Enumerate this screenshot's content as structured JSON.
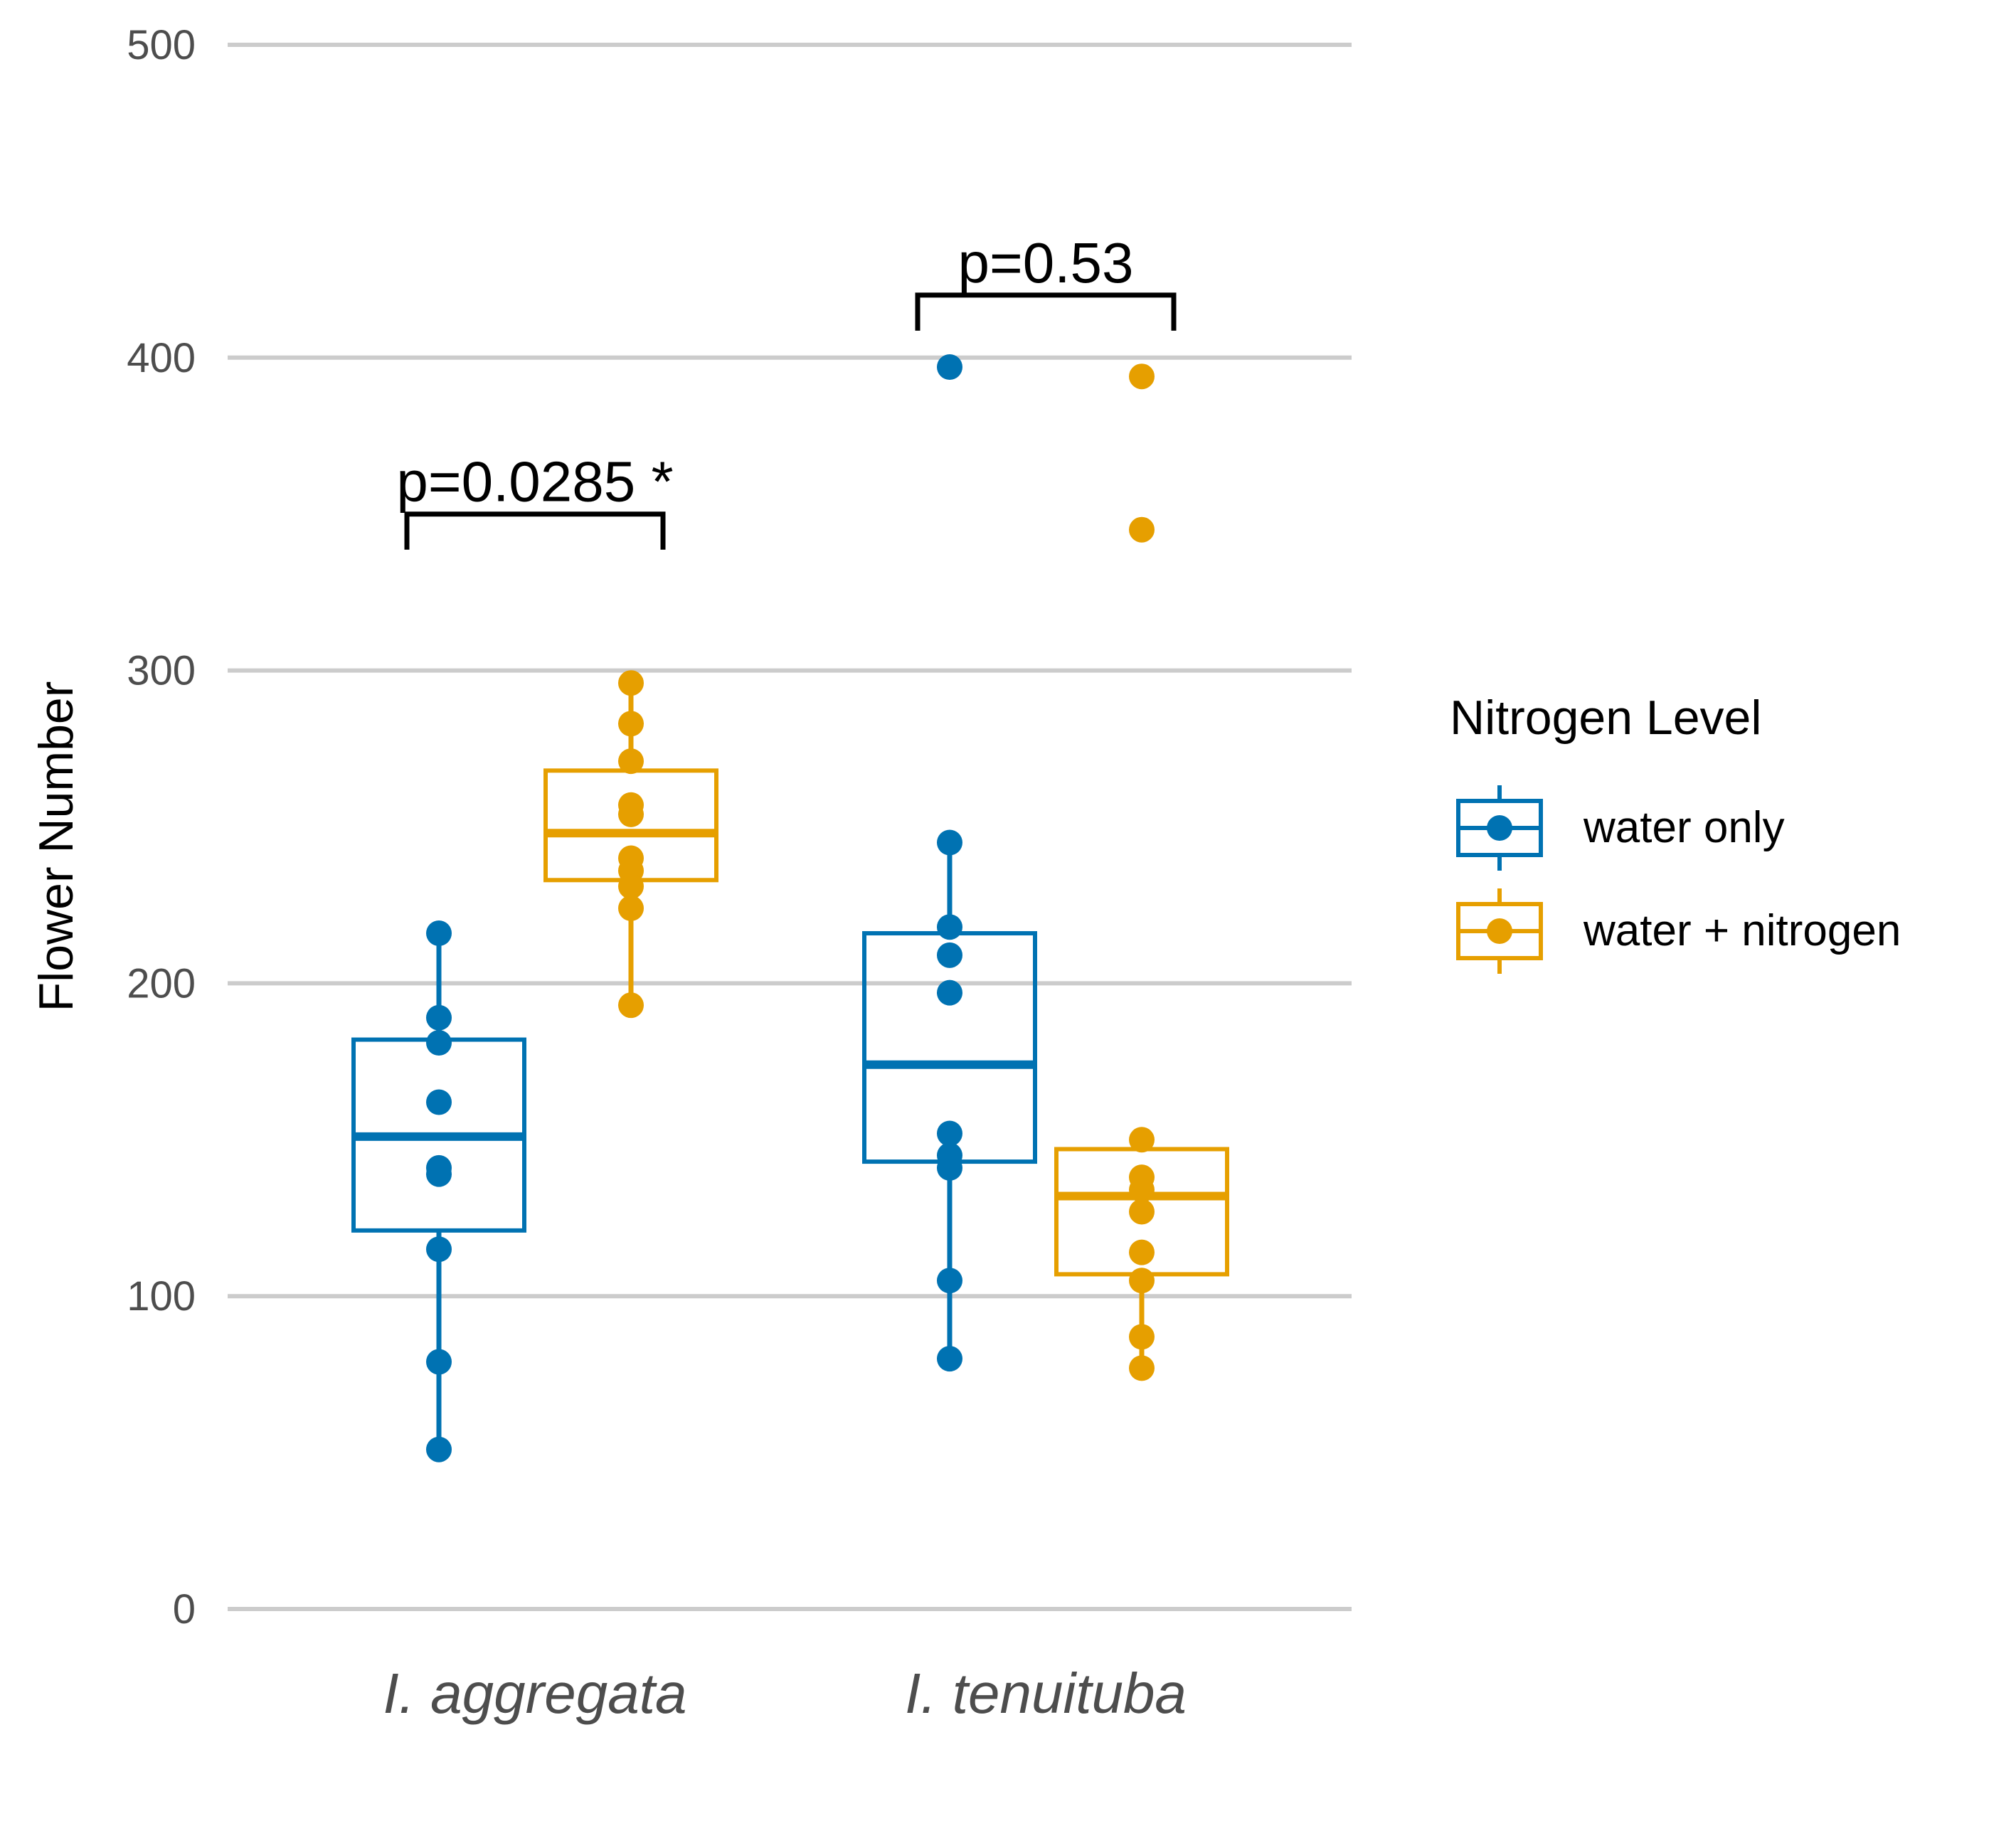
{
  "chart_data": {
    "type": "box",
    "title": "",
    "xlabel": "",
    "ylabel": "Flower Number",
    "ylim": [
      0,
      500
    ],
    "yticks": [
      0,
      100,
      200,
      300,
      400,
      500
    ],
    "grid": "horizontal",
    "categories": [
      "I. aggregata",
      "I. tenuituba"
    ],
    "legend": {
      "title": "Nitrogen Level",
      "placement": "right"
    },
    "series": [
      {
        "name": "water only",
        "color": "#0072B2",
        "boxes": [
          {
            "min": 51,
            "q1": 121,
            "median": 151,
            "q3": 182,
            "max": 216,
            "points": [
              216,
              189,
              181,
              162,
              141,
              139,
              115,
              79,
              51
            ]
          },
          {
            "min": 80,
            "q1": 143,
            "median": 174,
            "q3": 216,
            "max": 245,
            "points": [
              397,
              245,
              218,
              209,
              197,
              152,
              145,
              141,
              105,
              80
            ]
          }
        ]
      },
      {
        "name": "water + nitrogen",
        "color": "#E69F00",
        "boxes": [
          {
            "min": 193,
            "q1": 233,
            "median": 248,
            "q3": 268,
            "max": 296,
            "points": [
              296,
              283,
              271,
              257,
              254,
              240,
              236,
              231,
              224,
              193
            ]
          },
          {
            "min": 77,
            "q1": 107,
            "median": 132,
            "q3": 147,
            "max": 150,
            "points": [
              394,
              345,
              150,
              138,
              134,
              127,
              114,
              105,
              87,
              77
            ]
          }
        ]
      }
    ],
    "annotations": [
      {
        "text": "p=0.0285 *",
        "category": "I. aggregata",
        "y": 350
      },
      {
        "text": "p=0.53",
        "category": "I. tenuituba",
        "y": 420
      }
    ]
  }
}
